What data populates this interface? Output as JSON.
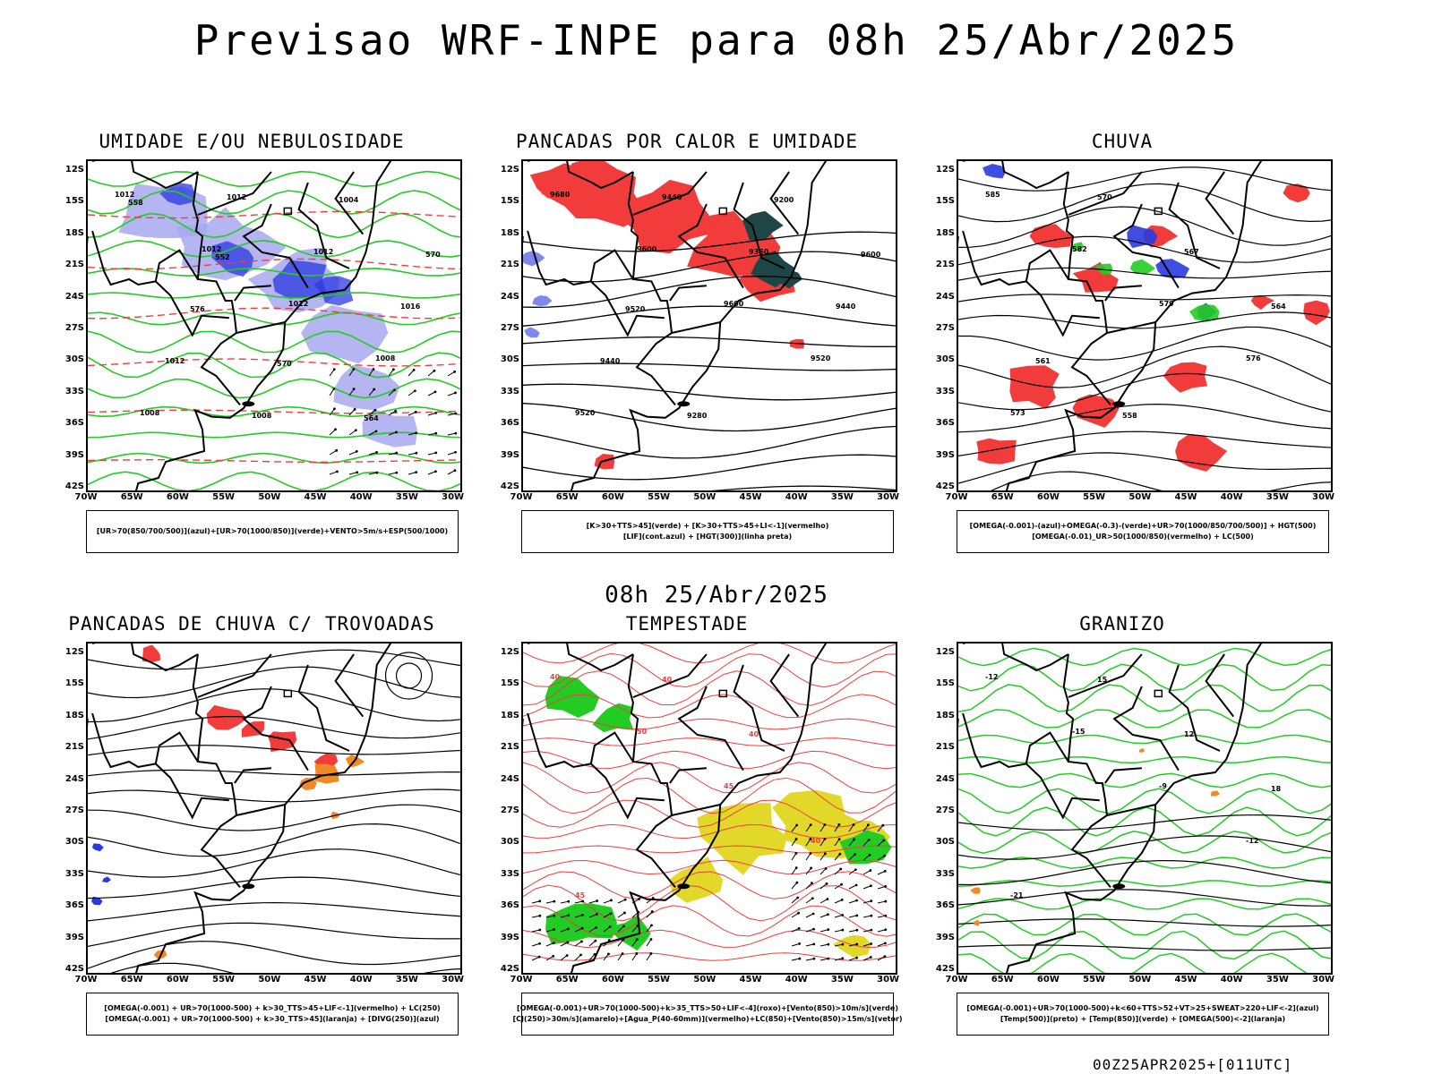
{
  "page": {
    "title": "Previsao WRF-INPE  para 08h 25/Abr/2025",
    "mid_date": "08h 25/Abr/2025",
    "footer": "00Z25APR2025+[011UTC]"
  },
  "axes": {
    "lat_labels": [
      "12S",
      "15S",
      "18S",
      "21S",
      "24S",
      "27S",
      "30S",
      "33S",
      "36S",
      "39S",
      "42S"
    ],
    "lon_labels": [
      "70W",
      "65W",
      "60W",
      "55W",
      "50W",
      "45W",
      "40W",
      "35W",
      "30W"
    ]
  },
  "colors": {
    "red": "#f23c3c",
    "green": "#22cc22",
    "blue": "#2a3ae0",
    "lightblue": "#a8a8f0",
    "darkteal": "#1e4646",
    "orange": "#f08a24",
    "yellow": "#e2d82a"
  },
  "panels": [
    {
      "title": "UMIDADE E/OU NEBULOSIDADE",
      "legend": [
        "[UR>70(850/700/500)](azul)+[UR>70(1000/850)](verde)+VENTO>5m/s+ESP(500/1000)"
      ],
      "contour_labels": [
        "1012",
        "1012",
        "1012",
        "1008",
        "1008",
        "1012",
        "1012",
        "1016",
        "1012",
        "1008",
        "1004",
        "570",
        "576",
        "570",
        "564",
        "558",
        "552"
      ]
    },
    {
      "title": "PANCADAS POR CALOR E UMIDADE",
      "legend": [
        "[K>30+TTS>45](verde) + [K>30+TTS>45+LI<-1](vermelho)",
        "[LIF](cont.azul) + [HGT(300)](linha preta)"
      ],
      "contour_labels": [
        "9680",
        "9600",
        "9600",
        "9520",
        "9520",
        "9440",
        "9360",
        "9440",
        "9440",
        "9280",
        "9200",
        "9600",
        "9520"
      ]
    },
    {
      "title": "CHUVA",
      "legend": [
        "[OMEGA(-0.001)-(azul)+OMEGA(-0.3)-(verde)+UR>70(1000/850/700/500)] + HGT(500)",
        "[OMEGA(-0.01)_UR>50(1000/850)(vermelho) + LC(500)"
      ],
      "contour_labels": [
        "585",
        "582",
        "579",
        "576",
        "573",
        "570",
        "567",
        "564",
        "561",
        "558"
      ]
    },
    {
      "title": "PANCADAS DE CHUVA C/ TROVOADAS",
      "legend": [
        "[OMEGA(-0.001) + UR>70(1000-500) + k>30_TTS>45+LIF<-1](vermelho) + LC(250)",
        "[OMEGA(-0.001) + UR>70(1000-500) + k>30_TTS>45](laranja) + [DIVG(250)](azul)"
      ],
      "contour_labels": []
    },
    {
      "title": "TEMPESTADE",
      "legend": [
        "[OMEGA(-0.001)+UR>70(1000-500)+k>35_TTS>50+LIF<-4](roxo)+[Vento(850)>10m/s](verde)",
        "[CJ(250)>30m/s](amarelo)+[Agua_P(40-60mm)](vermelho)+LC(850)+[Vento(850)>15m/s](vetor)"
      ],
      "contour_labels": [
        "40",
        "50",
        "45",
        "40",
        "45",
        "40",
        "40"
      ]
    },
    {
      "title": "GRANIZO",
      "legend": [
        "[OMEGA(-0.001)+UR>70(1000-500)+k<60+TTS>52+VT>25+SWEAT>220+LIF<-2](azul)",
        "[Temp(500)](preto) + [Temp(850)](verde) + [OMEGA(500)<-2](laranja)"
      ],
      "contour_labels": [
        "-12",
        "-15",
        "-9",
        "-12",
        "-21",
        "15",
        "12",
        "18"
      ]
    }
  ]
}
